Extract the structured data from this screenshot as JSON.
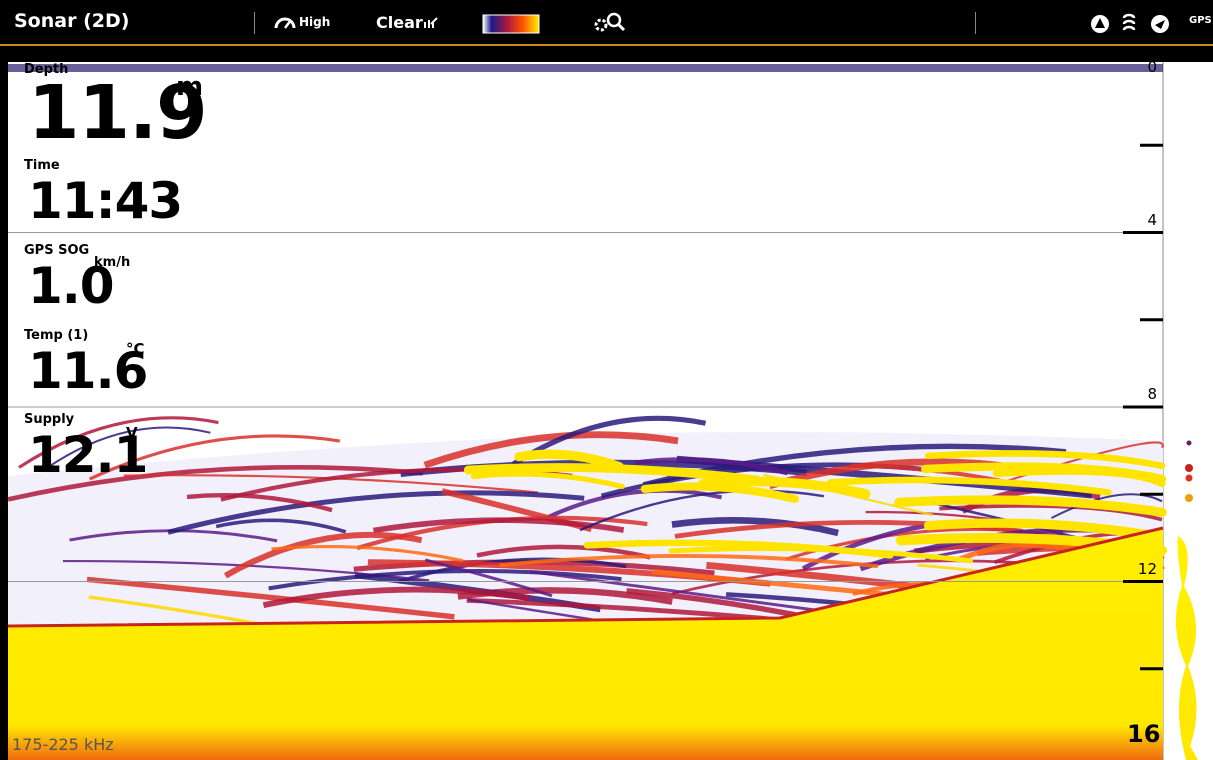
{
  "header": {
    "title": "Sonar (2D)",
    "gain_label": "High",
    "clear_label": "Clear",
    "gps_label": "GPS"
  },
  "readouts": [
    {
      "label": "Depth",
      "value": "11.9",
      "unit": "m"
    },
    {
      "label": "Time",
      "value": "11:43"
    },
    {
      "label": "GPS SOG",
      "value": "1.0",
      "unit": "km/h"
    },
    {
      "label": "Temp (1)",
      "value": "11.6",
      "unit": "°C"
    },
    {
      "label": "Supply",
      "value": "12.1",
      "unit": "V"
    }
  ],
  "depth_scale": {
    "ticks": [
      0,
      4,
      8,
      12,
      16
    ]
  },
  "frequency": "175-225 kHz"
}
